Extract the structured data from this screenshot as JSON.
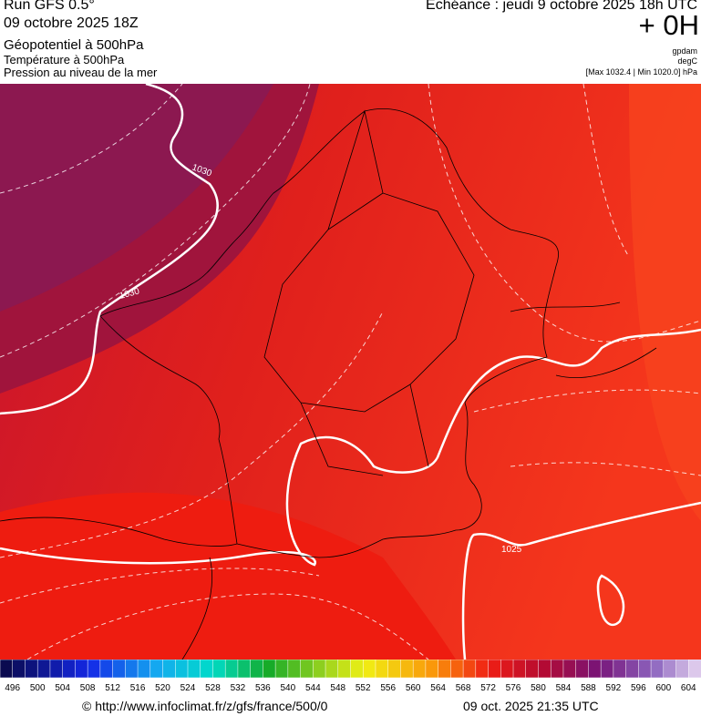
{
  "header": {
    "run": "Run GFS 0.5°",
    "date": "09 octobre 2025 18Z",
    "layers": [
      "Géopotentiel à 500hPa",
      "Température à 500hPa",
      "Pression au niveau de la mer"
    ],
    "valid": "Echéance : jeudi 9 octobre 2025 18h UTC",
    "lead": "+ 0H",
    "units": [
      "gpdam",
      "degC"
    ],
    "pressure_range": "[Max 1032.4 | Min 1020.0] hPa"
  },
  "map": {
    "isobar_labels": [
      "1030",
      "1030",
      "1025"
    ]
  },
  "legend": {
    "labels": [
      496,
      500,
      504,
      508,
      512,
      516,
      520,
      524,
      528,
      532,
      536,
      540,
      544,
      548,
      552,
      556,
      560,
      564,
      568,
      572,
      576,
      580,
      584,
      588,
      592,
      596,
      600,
      604
    ]
  },
  "footer": {
    "source": "© http://www.infoclimat.fr/z/gfs/france/500/0",
    "timestamp": "09 oct. 2025 21:35 UTC"
  }
}
